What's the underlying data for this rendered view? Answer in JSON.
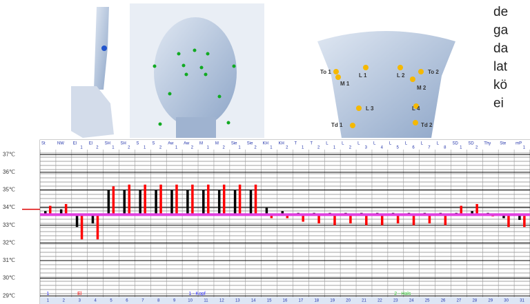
{
  "side_text": [
    "de",
    "ga",
    "da",
    "lat",
    "kö",
    "ei"
  ],
  "neck_labels": [
    "To 1",
    "L 1",
    "L 2",
    "To 2",
    "M 1",
    "M 2",
    "L 3",
    "L 4",
    "Td 1",
    "Td 2"
  ],
  "chart_data": {
    "type": "bar",
    "categories": [
      "1",
      "2",
      "3",
      "4",
      "5",
      "6",
      "7",
      "8",
      "9",
      "10",
      "11",
      "12",
      "13",
      "14",
      "15",
      "16",
      "17",
      "18",
      "19",
      "20",
      "21",
      "22",
      "23",
      "24",
      "25",
      "26",
      "27",
      "28",
      "29",
      "30",
      "31"
    ],
    "header_top": [
      "St",
      "NW",
      "El",
      "El",
      "SH",
      "SH",
      "S",
      "S",
      "Aw",
      "Aw",
      "M",
      "M",
      "Sie",
      "Sie",
      "KH",
      "KH",
      "T",
      "T",
      "L",
      "L",
      "L",
      "L",
      "L",
      "L",
      "L",
      "L",
      "SD",
      "SD",
      "Thy",
      "Ste",
      "mP"
    ],
    "header_sub": [
      null,
      null,
      "1",
      "2",
      "1",
      "2",
      "1",
      "2",
      "1",
      "2",
      "1",
      "2",
      "1",
      "2",
      "1",
      "2",
      "1",
      "2",
      "1",
      "2",
      "3",
      "4",
      "5",
      "6",
      "7",
      "8",
      "1",
      "2",
      null,
      null,
      "1"
    ],
    "series": [
      {
        "color": "#000000",
        "values": [
          33.8,
          33.9,
          32.9,
          33.1,
          35.0,
          35.0,
          35.0,
          35.0,
          35.0,
          35.0,
          35.0,
          35.0,
          35.0,
          35.0,
          34.0,
          33.8,
          33.7,
          33.7,
          33.7,
          33.7,
          33.7,
          33.7,
          33.7,
          33.7,
          33.7,
          33.7,
          33.7,
          33.8,
          33.7,
          33.4,
          33.3
        ]
      },
      {
        "color": "#ff0000",
        "values": [
          34.1,
          34.2,
          32.2,
          32.2,
          35.2,
          35.3,
          35.3,
          35.3,
          35.3,
          35.3,
          35.3,
          35.3,
          35.3,
          35.3,
          33.4,
          33.4,
          33.2,
          33.1,
          33.0,
          33.1,
          33.0,
          33.0,
          33.1,
          33.0,
          33.1,
          33.0,
          34.1,
          34.2,
          33.5,
          32.9,
          32.9
        ]
      }
    ],
    "reference_line": 33.6,
    "reference_color": "#e040e0",
    "marker": 33.9,
    "ylim": [
      28.5,
      37.4
    ],
    "yticks": [
      {
        "value": 29,
        "label": "29℃"
      },
      {
        "value": 30,
        "label": "30℃"
      },
      {
        "value": 31,
        "label": "31℃"
      },
      {
        "value": 32,
        "label": "32℃"
      },
      {
        "value": 33,
        "label": "33℃"
      },
      {
        "value": 34,
        "label": "34℃"
      },
      {
        "value": 35,
        "label": "35℃"
      },
      {
        "value": 36,
        "label": "36℃"
      },
      {
        "value": 37,
        "label": "37℃"
      }
    ],
    "region_labels": [
      {
        "text": "1",
        "color": "#3333ff"
      },
      {
        "text": "El",
        "color": "#ff0000"
      },
      {
        "text": "1 - Kopf",
        "color": "#3333ff"
      },
      {
        "text": "2 - Hals",
        "color": "#33cc33"
      }
    ]
  }
}
